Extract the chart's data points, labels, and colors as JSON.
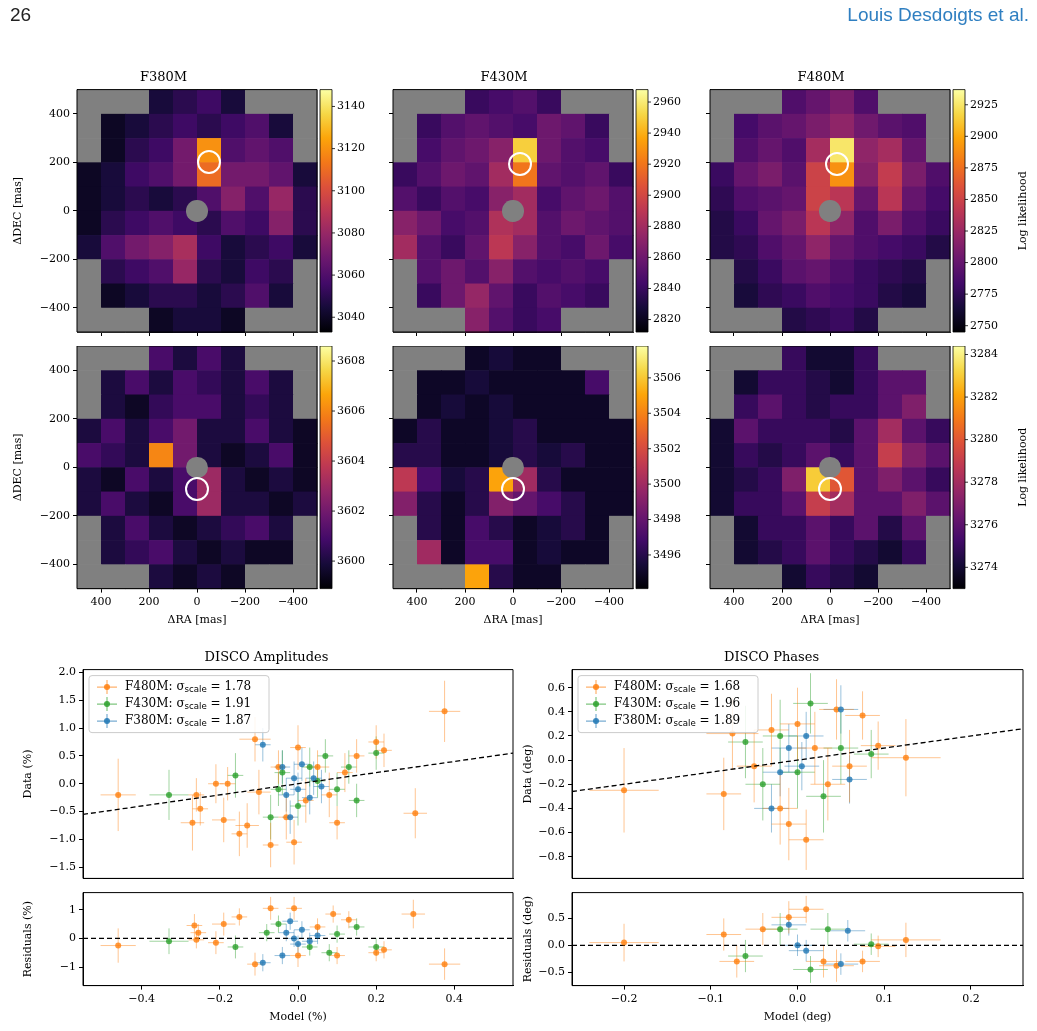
{
  "chart_data": [
    {
      "type": "heatmap",
      "title": "F380M",
      "ylabel": "ΔDEC [mas]",
      "annotations": [
        "26",
        "Louis Desdoigts et al."
      ],
      "xlim": [
        500,
        -500
      ],
      "ylim": [
        -500,
        500
      ],
      "xticks": [
        400,
        200,
        0,
        -200,
        -400
      ],
      "yticks": [
        -400,
        -200,
        0,
        200,
        400
      ],
      "tick_labels": "y",
      "clim": [
        3033,
        3148
      ],
      "cticks": [
        3040,
        3060,
        3080,
        3100,
        3120,
        3140
      ],
      "cells": [
        [
          null,
          null,
          null,
          3045,
          3050,
          3055,
          3045,
          null,
          null,
          null
        ],
        [
          null,
          3040,
          3045,
          3050,
          3055,
          3050,
          3055,
          3060,
          3045,
          null
        ],
        [
          null,
          3040,
          3050,
          3055,
          3070,
          3120,
          3060,
          3065,
          3060,
          null
        ],
        [
          3040,
          3045,
          3055,
          3060,
          3070,
          3110,
          3070,
          3070,
          3065,
          3045
        ],
        [
          3040,
          3045,
          3050,
          3045,
          3050,
          3060,
          3075,
          3060,
          3080,
          3050
        ],
        [
          3040,
          3050,
          3055,
          3060,
          3055,
          3050,
          3060,
          3055,
          3075,
          3050
        ],
        [
          3045,
          3060,
          3070,
          3075,
          3085,
          3055,
          3045,
          3050,
          3055,
          3045
        ],
        [
          null,
          3050,
          3055,
          3060,
          3080,
          3050,
          3045,
          3055,
          3050,
          null
        ],
        [
          null,
          3040,
          3045,
          3050,
          3050,
          3045,
          3050,
          3060,
          3045,
          null
        ],
        [
          null,
          null,
          null,
          3040,
          3045,
          3045,
          3040,
          null,
          null,
          null
        ]
      ]
    },
    {
      "type": "heatmap",
      "title": "F430M",
      "xlim": [
        500,
        -500
      ],
      "ylim": [
        -500,
        500
      ],
      "xticks": [
        400,
        200,
        0,
        -200,
        -400
      ],
      "yticks": [
        -400,
        -200,
        0,
        200,
        400
      ],
      "tick_labels": false,
      "clim": [
        2812,
        2968
      ],
      "cticks": [
        2820,
        2840,
        2860,
        2880,
        2900,
        2920,
        2940,
        2960
      ],
      "cells": [
        [
          null,
          null,
          null,
          2840,
          2845,
          2850,
          2840,
          null,
          null,
          null
        ],
        [
          null,
          2840,
          2850,
          2855,
          2850,
          2845,
          2860,
          2855,
          2840,
          null
        ],
        [
          null,
          2845,
          2855,
          2860,
          2870,
          2950,
          2860,
          2850,
          2845,
          null
        ],
        [
          2840,
          2850,
          2860,
          2855,
          2880,
          2920,
          2855,
          2850,
          2855,
          2840
        ],
        [
          2850,
          2840,
          2850,
          2845,
          2870,
          2880,
          2845,
          2855,
          2860,
          2850
        ],
        [
          2870,
          2860,
          2845,
          2850,
          2885,
          2880,
          2850,
          2860,
          2855,
          2850
        ],
        [
          2880,
          2850,
          2840,
          2855,
          2890,
          2870,
          2850,
          2845,
          2860,
          2845
        ],
        [
          null,
          2850,
          2860,
          2850,
          2870,
          2850,
          2845,
          2850,
          2845,
          null
        ],
        [
          null,
          2840,
          2860,
          2875,
          2855,
          2840,
          2850,
          2845,
          2840,
          null
        ],
        [
          null,
          null,
          null,
          2870,
          2850,
          2840,
          2845,
          null,
          null,
          null
        ]
      ]
    },
    {
      "type": "heatmap",
      "title": "F480M",
      "clabel": "Log likelihood",
      "xlim": [
        500,
        -500
      ],
      "ylim": [
        -500,
        500
      ],
      "xticks": [
        400,
        200,
        0,
        -200,
        -400
      ],
      "yticks": [
        -400,
        -200,
        0,
        200,
        400
      ],
      "tick_labels": false,
      "clim": [
        2745,
        2937
      ],
      "cticks": [
        2750,
        2775,
        2800,
        2825,
        2850,
        2875,
        2900,
        2925
      ],
      "cells": [
        [
          null,
          null,
          null,
          2790,
          2800,
          2810,
          2790,
          null,
          null,
          null
        ],
        [
          null,
          2785,
          2795,
          2800,
          2810,
          2820,
          2805,
          2795,
          2790,
          null
        ],
        [
          null,
          2790,
          2800,
          2790,
          2830,
          2925,
          2820,
          2830,
          2800,
          null
        ],
        [
          2780,
          2800,
          2810,
          2795,
          2850,
          2890,
          2815,
          2845,
          2810,
          2790
        ],
        [
          2775,
          2790,
          2795,
          2800,
          2850,
          2840,
          2800,
          2840,
          2800,
          2785
        ],
        [
          2770,
          2780,
          2800,
          2810,
          2840,
          2820,
          2790,
          2810,
          2790,
          2780
        ],
        [
          2770,
          2775,
          2790,
          2800,
          2820,
          2800,
          2790,
          2785,
          2780,
          2770
        ],
        [
          null,
          2770,
          2780,
          2795,
          2800,
          2790,
          2780,
          2775,
          2770,
          null
        ],
        [
          null,
          2765,
          2775,
          2780,
          2790,
          2785,
          2780,
          2770,
          2765,
          null
        ],
        [
          null,
          null,
          null,
          2770,
          2775,
          2780,
          2770,
          null,
          null,
          null
        ]
      ]
    },
    {
      "type": "heatmap",
      "xlabel": "ΔRA [mas]",
      "ylabel": "ΔDEC [mas]",
      "xlim": [
        500,
        -500
      ],
      "ylim": [
        -500,
        500
      ],
      "xticks": [
        400,
        200,
        0,
        -200,
        -400
      ],
      "yticks": [
        -400,
        -200,
        0,
        200,
        400
      ],
      "clim": [
        3598.9,
        3608.6
      ],
      "cticks": [
        3600,
        3602,
        3604,
        3606,
        3608
      ],
      "cells": [
        [
          null,
          null,
          null,
          3601,
          3600,
          3601,
          3600,
          null,
          null,
          null
        ],
        [
          null,
          3600,
          3601,
          3600,
          3601,
          3600.5,
          3600,
          3601,
          3600,
          null
        ],
        [
          null,
          3600,
          3599.5,
          3600.5,
          3601,
          3601,
          3600,
          3600.5,
          3600,
          null
        ],
        [
          3600,
          3601,
          3600,
          3601,
          3602,
          3600,
          3600,
          3601,
          3600,
          3599.5
        ],
        [
          3601,
          3600.5,
          3600,
          3606,
          3602,
          3600,
          3599.5,
          3600,
          3601,
          3599.5
        ],
        [
          3600,
          3599.5,
          3601,
          3600,
          3601,
          3603,
          3600,
          3599.5,
          3600,
          3599.5
        ],
        [
          3600,
          3601,
          3600,
          3599.5,
          3601,
          3603,
          3600,
          3600,
          3599.5,
          3600
        ],
        [
          null,
          3600,
          3601,
          3600,
          3599.5,
          3600,
          3600.5,
          3601,
          3600,
          null
        ],
        [
          null,
          3600,
          3600.5,
          3601,
          3600,
          3599.5,
          3600,
          3599.5,
          3599.5,
          null
        ],
        [
          null,
          null,
          null,
          3600,
          3599.5,
          3600,
          3599.5,
          null,
          null,
          null
        ]
      ]
    },
    {
      "type": "heatmap",
      "xlabel": "ΔRA [mas]",
      "xlim": [
        500,
        -500
      ],
      "ylim": [
        -500,
        500
      ],
      "xticks": [
        400,
        200,
        0,
        -200,
        -400
      ],
      "yticks": [
        -400,
        -200,
        0,
        200,
        400
      ],
      "tick_labels": "x",
      "clim": [
        3494.1,
        3507.8
      ],
      "cticks": [
        3496,
        3498,
        3500,
        3502,
        3504,
        3506
      ],
      "cells": [
        [
          null,
          null,
          null,
          3495,
          3495.5,
          3495,
          3495,
          null,
          null,
          null
        ],
        [
          null,
          3495,
          3495,
          3495.5,
          3495,
          3495,
          3495,
          3495,
          3497,
          null
        ],
        [
          null,
          3495,
          3495.5,
          3495,
          3495.5,
          3495,
          3495,
          3495,
          3495,
          null
        ],
        [
          3495,
          3496,
          3495,
          3495,
          3495.5,
          3496,
          3495,
          3495,
          3495,
          3495
        ],
        [
          3496,
          3496,
          3495,
          3495,
          3495.5,
          3496,
          3495.5,
          3496,
          3495,
          3495
        ],
        [
          3501,
          3497,
          3495.5,
          3496,
          3505,
          3500,
          3496,
          3495,
          3495,
          3495
        ],
        [
          3499,
          3496,
          3495,
          3496,
          3499,
          3498,
          3497,
          3496,
          3495,
          3495
        ],
        [
          null,
          3496,
          3495,
          3497,
          3496,
          3495,
          3495.5,
          3496,
          3495,
          null
        ],
        [
          null,
          3500,
          3495,
          3497,
          3497,
          3495,
          3495.5,
          3495,
          3495,
          null
        ],
        [
          null,
          null,
          null,
          3505,
          3496,
          3495,
          3495,
          null,
          null,
          null
        ]
      ]
    },
    {
      "type": "heatmap",
      "xlabel": "ΔRA [mas]",
      "clabel": "Log likelihood",
      "xlim": [
        500,
        -500
      ],
      "ylim": [
        -500,
        500
      ],
      "xticks": [
        400,
        200,
        0,
        -200,
        -400
      ],
      "yticks": [
        -400,
        -200,
        0,
        200,
        400
      ],
      "tick_labels": "x",
      "clim": [
        3273,
        3284.4
      ],
      "cticks": [
        3274,
        3276,
        3278,
        3280,
        3282,
        3284
      ],
      "cells": [
        [
          null,
          null,
          null,
          3275,
          3274,
          3274,
          3275,
          null,
          null,
          null
        ],
        [
          null,
          3274,
          3275,
          3275,
          3274.5,
          3274,
          3275,
          3276,
          3276,
          null
        ],
        [
          null,
          3275,
          3276,
          3275,
          3274.5,
          3275,
          3275,
          3276,
          3277,
          null
        ],
        [
          3274,
          3276,
          3275,
          3275,
          3275,
          3274.5,
          3276,
          3278,
          3276,
          3275
        ],
        [
          3274,
          3275,
          3274.5,
          3275,
          3276,
          3275,
          3276,
          3279,
          3277,
          3276
        ],
        [
          3274,
          3274.5,
          3275,
          3277,
          3283,
          3280,
          3276,
          3277,
          3276,
          3275
        ],
        [
          3274,
          3275,
          3275,
          3276,
          3279,
          3278,
          3276,
          3276,
          3277,
          3276
        ],
        [
          null,
          3274,
          3275,
          3275,
          3276,
          3275,
          3276,
          3274.5,
          3276,
          null
        ],
        [
          null,
          3274,
          3274.5,
          3275,
          3276,
          3275,
          3274.5,
          3274,
          3275,
          null
        ],
        [
          null,
          null,
          null,
          3274,
          3275,
          3274.5,
          3274,
          null,
          null,
          null
        ]
      ]
    },
    {
      "type": "scatter",
      "title": "DISCO Amplitudes",
      "ylabel": "Data (%)",
      "xlim": [
        -0.55,
        0.55
      ],
      "ylim": [
        -1.7,
        2.05
      ],
      "yticks": [
        -1.5,
        {
          "value": -1,
          "label": "−1.0"
        },
        -0.5,
        {
          "value": 0,
          "label": "0.0"
        },
        0.5,
        {
          "value": 1,
          "label": "1.0"
        },
        1.5,
        {
          "value": 2,
          "label": "2.0"
        }
      ],
      "tick_labels": "y",
      "legend": "top left",
      "marker": "circle",
      "series": [
        {
          "name": "F480M: σ$_{scale}$ = 1.78",
          "color": "#ff7f0e",
          "x": [
            -0.46,
            -0.27,
            -0.26,
            -0.25,
            -0.21,
            -0.19,
            -0.18,
            -0.15,
            -0.13,
            -0.11,
            -0.1,
            -0.07,
            -0.05,
            -0.03,
            -0.01,
            0,
            0.02,
            0.05,
            0.08,
            0.1,
            0.12,
            0.15,
            0.2,
            0.22,
            0.3,
            0.375
          ],
          "values": [
            -0.2,
            -0.7,
            -0.2,
            -0.45,
            0,
            -0.65,
            0,
            -0.9,
            -0.75,
            0.8,
            -0.15,
            -1.1,
            0.3,
            -0.6,
            -1.05,
            0.65,
            -0.3,
            0.3,
            -0.2,
            -0.7,
            0.2,
            0.5,
            0.75,
            0.6,
            -0.53,
            1.3
          ],
          "xerrors": [
            0.045,
            0.03,
            0.02,
            0.02,
            0.02,
            0.03,
            0.02,
            0.02,
            0.03,
            0.04,
            0.03,
            0.02,
            0.02,
            0.02,
            0.02,
            0.02,
            0.02,
            0.03,
            0.02,
            0.02,
            0.02,
            0.02,
            0.02,
            0.02,
            0.03,
            0.04
          ],
          "errors": [
            0.65,
            0.5,
            0.3,
            0.3,
            0.35,
            0.4,
            0.3,
            0.4,
            0.4,
            0.4,
            0.4,
            0.4,
            0.3,
            0.4,
            0.4,
            0.4,
            0.4,
            0.3,
            0.4,
            0.3,
            0.35,
            0.3,
            0.3,
            0.3,
            0.45,
            0.55
          ]
        },
        {
          "name": "F430M: σ$_{scale}$ = 1.91",
          "color": "#2ca02c",
          "x": [
            -0.33,
            -0.16,
            -0.07,
            -0.05,
            -0.04,
            0,
            0.03,
            0.05,
            0.07,
            0.1,
            0.13,
            0.15,
            0.2
          ],
          "values": [
            -0.2,
            0.15,
            -0.6,
            -0.1,
            0.2,
            -0.4,
            0.3,
            0.05,
            0.5,
            -0.1,
            0.3,
            -0.3,
            0.55
          ],
          "xerrors": [
            0.05,
            0.02,
            0.02,
            0.02,
            0.02,
            0.02,
            0.02,
            0.02,
            0.02,
            0.02,
            0.02,
            0.02,
            0.02
          ],
          "errors": [
            0.45,
            0.4,
            0.4,
            0.3,
            0.4,
            0.35,
            0.35,
            0.3,
            0.3,
            0.3,
            0.3,
            0.3,
            0.3
          ]
        },
        {
          "name": "F380M: σ$_{scale}$ = 1.87",
          "color": "#1f77b4",
          "x": [
            -0.09,
            -0.04,
            -0.03,
            -0.02,
            -0.01,
            0,
            0.01,
            0.03,
            0.04,
            0.06
          ],
          "values": [
            0.7,
            0.3,
            -0.2,
            -0.6,
            0.1,
            -0.1,
            0.35,
            -0.25,
            0.1,
            -0.05
          ],
          "xerrors": [
            0.02,
            0.02,
            0.02,
            0.02,
            0.02,
            0.02,
            0.02,
            0.02,
            0.02,
            0.02
          ],
          "errors": [
            0.3,
            0.3,
            0.3,
            0.3,
            0.3,
            0.3,
            0.3,
            0.3,
            0.3,
            0.3
          ]
        },
        {
          "type": "line",
          "color": "#000000",
          "x": [
            -0.55,
            0.55
          ],
          "values": [
            -0.55,
            0.55
          ],
          "line_style": "dashed",
          "marker": "none"
        }
      ]
    },
    {
      "type": "scatter",
      "xlabel": "Model (%)",
      "ylabel": "Residuals (%)",
      "xlim": [
        -0.55,
        0.55
      ],
      "ylim": [
        -1.65,
        1.6
      ],
      "xticks": [
        -0.4,
        -0.2,
        {
          "value": 0,
          "label": "0.0"
        },
        0.2,
        0.4
      ],
      "yticks": [
        -1,
        0,
        1
      ],
      "marker": "circle",
      "ref_lines": [
        {
          "axis": "y",
          "value": 0,
          "color": "#000000",
          "line_style": "dashed"
        }
      ],
      "series": [
        {
          "color": "#ff7f0e",
          "x": [
            -0.46,
            -0.265,
            -0.26,
            -0.255,
            -0.21,
            -0.19,
            -0.15,
            -0.11,
            -0.07,
            -0.01,
            0,
            0.05,
            0.09,
            0.1,
            0.13,
            0.2,
            0.22,
            0.295,
            0.375
          ],
          "values": [
            -0.25,
            0.45,
            -0.05,
            0.2,
            -0.15,
            0.5,
            0.75,
            -0.9,
            1.05,
            1.05,
            -0.6,
            0.4,
            0.85,
            -0.6,
            0.65,
            -0.5,
            -0.4,
            0.85,
            -0.9
          ],
          "xerrors": [
            0.045,
            0.02,
            0.02,
            0.02,
            0.02,
            0.03,
            0.02,
            0.02,
            0.02,
            0.02,
            0.02,
            0.02,
            0.02,
            0.02,
            0.02,
            0.02,
            0.02,
            0.03,
            0.04
          ],
          "errors": [
            0.6,
            0.4,
            0.3,
            0.3,
            0.4,
            0.4,
            0.3,
            0.4,
            0.4,
            0.4,
            0.4,
            0.3,
            0.3,
            0.3,
            0.3,
            0.3,
            0.3,
            0.5,
            0.55
          ]
        },
        {
          "color": "#2ca02c",
          "x": [
            -0.33,
            -0.16,
            -0.08,
            -0.05,
            0.03,
            0.08,
            0.1,
            0.15,
            0.2
          ],
          "values": [
            -0.1,
            -0.3,
            0.2,
            0.5,
            -0.3,
            -0.5,
            0.15,
            0.4,
            -0.3
          ],
          "xerrors": [
            0.05,
            0.02,
            0.02,
            0.02,
            0.02,
            0.02,
            0.02,
            0.02,
            0.02
          ],
          "errors": [
            0.45,
            0.4,
            0.3,
            0.3,
            0.3,
            0.3,
            0.3,
            0.3,
            0.3
          ]
        },
        {
          "color": "#1f77b4",
          "x": [
            -0.09,
            -0.04,
            -0.03,
            -0.02,
            -0.01,
            0,
            0.01,
            0.03,
            0.05
          ],
          "values": [
            -0.85,
            -0.6,
            0.2,
            0.6,
            0,
            -0.2,
            0.3,
            -0.1,
            0.1
          ],
          "xerrors": [
            0.02,
            0.02,
            0.02,
            0.02,
            0.02,
            0.02,
            0.02,
            0.02,
            0.02
          ],
          "errors": [
            0.3,
            0.3,
            0.3,
            0.3,
            0.3,
            0.3,
            0.3,
            0.3,
            0.3
          ]
        }
      ]
    },
    {
      "type": "scatter",
      "title": "DISCO Phases",
      "ylabel": "Data (deg)",
      "xlim": [
        -0.26,
        0.26
      ],
      "ylim": [
        -0.98,
        0.75
      ],
      "yticks": [
        -0.8,
        -0.6,
        -0.4,
        -0.2,
        {
          "value": 0,
          "label": "0.0"
        },
        0.2,
        0.4,
        0.6
      ],
      "tick_labels": "y",
      "legend": "top left",
      "marker": "circle",
      "series": [
        {
          "name": "F480M: σ$_{scale}$ = 1.68",
          "color": "#ff7f0e",
          "x": [
            -0.2,
            -0.085,
            -0.075,
            -0.05,
            -0.03,
            -0.02,
            -0.01,
            0,
            0.01,
            0.02,
            0.035,
            0.045,
            0.06,
            0.075,
            0.093,
            0.125
          ],
          "values": [
            -0.25,
            -0.28,
            0.22,
            -0.05,
            0.25,
            -0.4,
            -0.53,
            0.3,
            -0.66,
            0.1,
            -0.2,
            0.42,
            -0.05,
            0.37,
            0.12,
            0.02
          ],
          "xerrors": [
            0.04,
            0.02,
            0.03,
            0.02,
            0.02,
            0.02,
            0.02,
            0.02,
            0.02,
            0.02,
            0.02,
            0.02,
            0.02,
            0.02,
            0.02,
            0.04
          ],
          "errors": [
            0.35,
            0.3,
            0.3,
            0.3,
            0.3,
            0.3,
            0.3,
            0.3,
            0.25,
            0.3,
            0.3,
            0.25,
            0.3,
            0.2,
            0.2,
            0.32
          ]
        },
        {
          "name": "F430M: σ$_{scale}$ = 1.96",
          "color": "#2ca02c",
          "x": [
            -0.06,
            -0.04,
            -0.02,
            0,
            0.015,
            0.03,
            0.05,
            0.085
          ],
          "values": [
            0.15,
            -0.2,
            0.2,
            -0.1,
            0.47,
            -0.3,
            0.1,
            0.05
          ],
          "xerrors": [
            0.02,
            0.02,
            0.02,
            0.02,
            0.02,
            0.02,
            0.02,
            0.02
          ],
          "errors": [
            0.3,
            0.3,
            0.3,
            0.3,
            0.25,
            0.3,
            0.3,
            0.2
          ]
        },
        {
          "name": "F380M: σ$_{scale}$ = 1.89",
          "color": "#1f77b4",
          "x": [
            -0.03,
            -0.02,
            -0.01,
            0.005,
            0.01,
            0.05,
            0.06
          ],
          "values": [
            -0.4,
            -0.1,
            0.1,
            -0.05,
            0.2,
            0.42,
            -0.16
          ],
          "xerrors": [
            0.02,
            0.02,
            0.02,
            0.02,
            0.02,
            0.02,
            0.02
          ],
          "errors": [
            0.2,
            0.2,
            0.2,
            0.2,
            0.2,
            0.2,
            0.2
          ]
        },
        {
          "type": "line",
          "color": "#000000",
          "x": [
            -0.26,
            0.26
          ],
          "values": [
            -0.26,
            0.26
          ],
          "line_style": "dashed",
          "marker": "none"
        }
      ]
    },
    {
      "type": "scatter",
      "xlabel": "Model (deg)",
      "ylabel": "Residuals (deg)",
      "xlim": [
        -0.26,
        0.26
      ],
      "ylim": [
        -0.75,
        0.98
      ],
      "xticks": [
        -0.2,
        -0.1,
        {
          "value": 0,
          "label": "0.0"
        },
        0.1,
        0.2
      ],
      "yticks": [
        -0.5,
        {
          "value": 0,
          "label": "0.0"
        },
        0.5
      ],
      "marker": "circle",
      "ref_lines": [
        {
          "axis": "y",
          "value": 0,
          "color": "#000000",
          "line_style": "dashed"
        }
      ],
      "series": [
        {
          "color": "#ff7f0e",
          "x": [
            -0.2,
            -0.085,
            -0.07,
            -0.04,
            -0.01,
            0.01,
            0.03,
            0.045,
            0.075,
            0.093,
            0.125
          ],
          "values": [
            0.05,
            0.2,
            -0.3,
            0.3,
            0.52,
            0.67,
            -0.3,
            -0.38,
            -0.3,
            -0.02,
            0.1
          ],
          "xerrors": [
            0.04,
            0.02,
            0.02,
            0.02,
            0.02,
            0.02,
            0.02,
            0.02,
            0.02,
            0.02,
            0.04
          ],
          "errors": [
            0.35,
            0.3,
            0.3,
            0.3,
            0.3,
            0.25,
            0.3,
            0.3,
            0.2,
            0.2,
            0.32
          ]
        },
        {
          "color": "#2ca02c",
          "x": [
            -0.06,
            -0.02,
            0.015,
            0.035,
            0.085
          ],
          "values": [
            -0.2,
            0.3,
            -0.45,
            0.3,
            0.02
          ],
          "xerrors": [
            0.02,
            0.02,
            0.02,
            0.02,
            0.02
          ],
          "errors": [
            0.3,
            0.3,
            0.25,
            0.3,
            0.2
          ]
        },
        {
          "color": "#1f77b4",
          "x": [
            -0.01,
            0,
            0.01,
            0.05,
            0.058
          ],
          "values": [
            0.38,
            0,
            -0.1,
            -0.35,
            0.27
          ],
          "xerrors": [
            0.02,
            0.02,
            0.02,
            0.02,
            0.02
          ],
          "errors": [
            0.2,
            0.2,
            0.2,
            0.2,
            0.2
          ]
        }
      ]
    }
  ]
}
